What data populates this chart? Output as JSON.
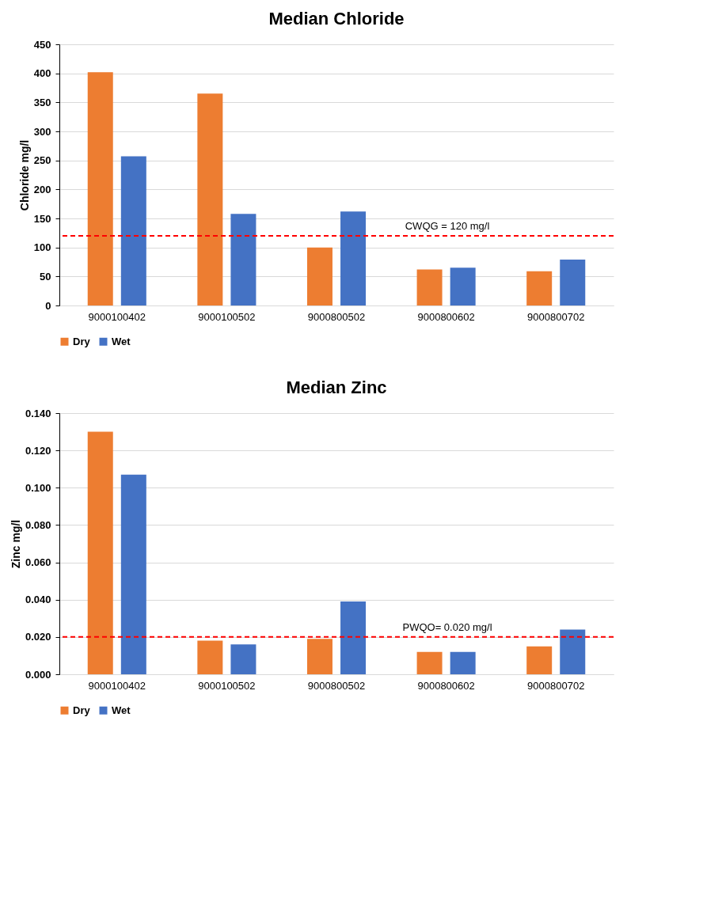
{
  "chart_data": [
    {
      "type": "bar",
      "title": "Median Chloride",
      "ylabel": "Chloride mg/l",
      "categories": [
        "9000100402",
        "9000100502",
        "9000800502",
        "9000800602",
        "9000800702"
      ],
      "series": [
        {
          "name": "Dry",
          "color": "#ed7d31",
          "values": [
            402,
            365,
            100,
            62,
            59
          ]
        },
        {
          "name": "Wet",
          "color": "#4472c4",
          "values": [
            257,
            158,
            162,
            65,
            79
          ]
        }
      ],
      "ylim": [
        0,
        450
      ],
      "yticks": [
        0,
        50,
        100,
        150,
        200,
        250,
        300,
        350,
        400,
        450
      ],
      "grid": "y",
      "legend": "bottom",
      "ref_lines": [
        {
          "axis": "y",
          "value": 120,
          "label": "CWQG = 120 mg/l",
          "color": "#ff0000",
          "line_style": "dashed"
        }
      ]
    },
    {
      "type": "bar",
      "title": "Median Zinc",
      "ylabel": "Zinc mg/l",
      "categories": [
        "9000100402",
        "9000100502",
        "9000800502",
        "9000800602",
        "9000800702"
      ],
      "series": [
        {
          "name": "Dry",
          "color": "#ed7d31",
          "values": [
            0.13,
            0.018,
            0.019,
            0.012,
            0.015
          ]
        },
        {
          "name": "Wet",
          "color": "#4472c4",
          "values": [
            0.107,
            0.016,
            0.039,
            0.012,
            0.024
          ]
        }
      ],
      "ylim": [
        0,
        0.14
      ],
      "yticks": [
        {
          "value": 0,
          "label": "0.000"
        },
        {
          "value": 0.02,
          "label": "0.020"
        },
        {
          "value": 0.04,
          "label": "0.040"
        },
        {
          "value": 0.06,
          "label": "0.060"
        },
        {
          "value": 0.08,
          "label": "0.080"
        },
        {
          "value": 0.1,
          "label": "0.100"
        },
        {
          "value": 0.12,
          "label": "0.120"
        },
        {
          "value": 0.14,
          "label": "0.140"
        }
      ],
      "grid": "y",
      "legend": "bottom",
      "ref_lines": [
        {
          "axis": "y",
          "value": 0.02,
          "label": "PWQO= 0.020 mg/l",
          "color": "#ff0000",
          "line_style": "dashed"
        }
      ]
    }
  ]
}
